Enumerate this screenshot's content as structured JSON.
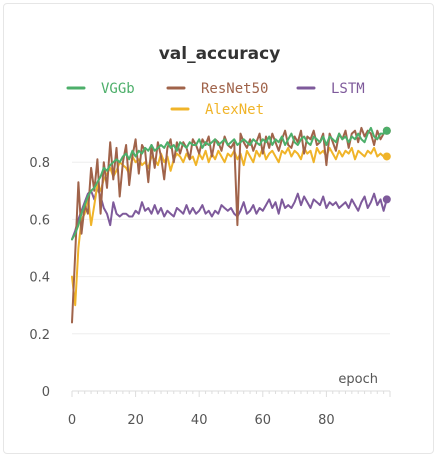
{
  "chart_data": {
    "type": "line",
    "title": "val_accuracy",
    "xlabel": "epoch",
    "ylabel": "",
    "xlim": [
      0,
      100
    ],
    "ylim": [
      0,
      1.0
    ],
    "x_ticks": [
      0,
      20,
      40,
      60,
      80
    ],
    "y_ticks": [
      0,
      0.2,
      0.4,
      0.6,
      0.8
    ],
    "x_tick_labels": [
      "0",
      "20",
      "40",
      "60",
      "80"
    ],
    "y_tick_labels": [
      "0",
      "0.2",
      "0.4",
      "0.6",
      "0.8"
    ],
    "grid": "horizontal",
    "legend_position": "top",
    "series": [
      {
        "name": "VGGb",
        "color": "#4daf6a",
        "values": [
          0.53,
          0.55,
          0.58,
          0.62,
          0.65,
          0.68,
          0.7,
          0.71,
          0.73,
          0.75,
          0.78,
          0.77,
          0.79,
          0.8,
          0.81,
          0.8,
          0.82,
          0.83,
          0.81,
          0.84,
          0.82,
          0.84,
          0.83,
          0.85,
          0.84,
          0.86,
          0.84,
          0.85,
          0.86,
          0.85,
          0.87,
          0.85,
          0.86,
          0.84,
          0.87,
          0.86,
          0.85,
          0.87,
          0.86,
          0.86,
          0.88,
          0.85,
          0.87,
          0.86,
          0.87,
          0.88,
          0.86,
          0.87,
          0.88,
          0.86,
          0.87,
          0.88,
          0.86,
          0.87,
          0.88,
          0.87,
          0.86,
          0.88,
          0.87,
          0.86,
          0.88,
          0.87,
          0.89,
          0.86,
          0.88,
          0.87,
          0.89,
          0.86,
          0.88,
          0.9,
          0.87,
          0.86,
          0.88,
          0.89,
          0.87,
          0.86,
          0.89,
          0.88,
          0.87,
          0.89,
          0.86,
          0.89,
          0.88,
          0.87,
          0.9,
          0.88,
          0.89,
          0.87,
          0.89,
          0.88,
          0.9,
          0.88,
          0.87,
          0.9,
          0.92,
          0.89,
          0.88,
          0.9,
          0.9,
          0.91
        ]
      },
      {
        "name": "ResNet50",
        "color": "#a0634a",
        "values": [
          0.24,
          0.48,
          0.73,
          0.55,
          0.65,
          0.62,
          0.78,
          0.7,
          0.81,
          0.62,
          0.8,
          0.71,
          0.87,
          0.74,
          0.85,
          0.68,
          0.8,
          0.86,
          0.72,
          0.82,
          0.88,
          0.76,
          0.86,
          0.84,
          0.73,
          0.86,
          0.78,
          0.87,
          0.82,
          0.74,
          0.85,
          0.88,
          0.8,
          0.87,
          0.83,
          0.87,
          0.85,
          0.81,
          0.88,
          0.86,
          0.83,
          0.88,
          0.86,
          0.89,
          0.82,
          0.88,
          0.87,
          0.84,
          0.89,
          0.86,
          0.85,
          0.87,
          0.58,
          0.9,
          0.87,
          0.85,
          0.88,
          0.84,
          0.87,
          0.9,
          0.83,
          0.89,
          0.85,
          0.9,
          0.87,
          0.84,
          0.88,
          0.91,
          0.86,
          0.85,
          0.89,
          0.87,
          0.91,
          0.83,
          0.89,
          0.88,
          0.91,
          0.86,
          0.87,
          0.9,
          0.79,
          0.9,
          0.87,
          0.84,
          0.9,
          0.88,
          0.91,
          0.85,
          0.9,
          0.91,
          0.87,
          0.92,
          0.89,
          0.91,
          0.9,
          0.86,
          0.91,
          0.88,
          0.9,
          0.91
        ]
      },
      {
        "name": "LSTM",
        "color": "#7e5a9b",
        "values": [
          0.53,
          0.56,
          0.6,
          0.63,
          0.66,
          0.69,
          0.7,
          0.67,
          0.71,
          0.68,
          0.64,
          0.62,
          0.58,
          0.66,
          0.62,
          0.61,
          0.62,
          0.62,
          0.61,
          0.61,
          0.63,
          0.62,
          0.66,
          0.63,
          0.64,
          0.62,
          0.65,
          0.62,
          0.64,
          0.61,
          0.63,
          0.62,
          0.61,
          0.64,
          0.63,
          0.62,
          0.65,
          0.62,
          0.64,
          0.62,
          0.63,
          0.65,
          0.62,
          0.63,
          0.61,
          0.63,
          0.62,
          0.65,
          0.64,
          0.63,
          0.64,
          0.62,
          0.61,
          0.63,
          0.66,
          0.62,
          0.63,
          0.65,
          0.62,
          0.64,
          0.63,
          0.65,
          0.67,
          0.64,
          0.66,
          0.62,
          0.67,
          0.64,
          0.65,
          0.64,
          0.66,
          0.69,
          0.65,
          0.68,
          0.66,
          0.64,
          0.67,
          0.66,
          0.65,
          0.68,
          0.64,
          0.66,
          0.65,
          0.66,
          0.64,
          0.65,
          0.66,
          0.64,
          0.67,
          0.65,
          0.63,
          0.66,
          0.68,
          0.64,
          0.66,
          0.69,
          0.65,
          0.67,
          0.63,
          0.67
        ]
      },
      {
        "name": "AlexNet",
        "color": "#f0b429",
        "values": [
          0.4,
          0.3,
          0.5,
          0.6,
          0.62,
          0.68,
          0.58,
          0.65,
          0.72,
          0.7,
          0.74,
          0.76,
          0.78,
          0.75,
          0.77,
          0.8,
          0.79,
          0.78,
          0.76,
          0.82,
          0.8,
          0.81,
          0.79,
          0.8,
          0.78,
          0.82,
          0.81,
          0.79,
          0.83,
          0.8,
          0.82,
          0.77,
          0.81,
          0.83,
          0.82,
          0.8,
          0.83,
          0.81,
          0.82,
          0.79,
          0.83,
          0.81,
          0.84,
          0.8,
          0.83,
          0.81,
          0.84,
          0.82,
          0.8,
          0.83,
          0.82,
          0.84,
          0.81,
          0.83,
          0.79,
          0.84,
          0.82,
          0.8,
          0.84,
          0.82,
          0.85,
          0.81,
          0.83,
          0.84,
          0.82,
          0.8,
          0.84,
          0.83,
          0.85,
          0.82,
          0.84,
          0.83,
          0.81,
          0.85,
          0.83,
          0.84,
          0.8,
          0.85,
          0.83,
          0.84,
          0.82,
          0.85,
          0.83,
          0.81,
          0.84,
          0.82,
          0.84,
          0.83,
          0.85,
          0.81,
          0.84,
          0.83,
          0.82,
          0.84,
          0.83,
          0.85,
          0.82,
          0.83,
          0.82,
          0.82
        ]
      }
    ]
  }
}
